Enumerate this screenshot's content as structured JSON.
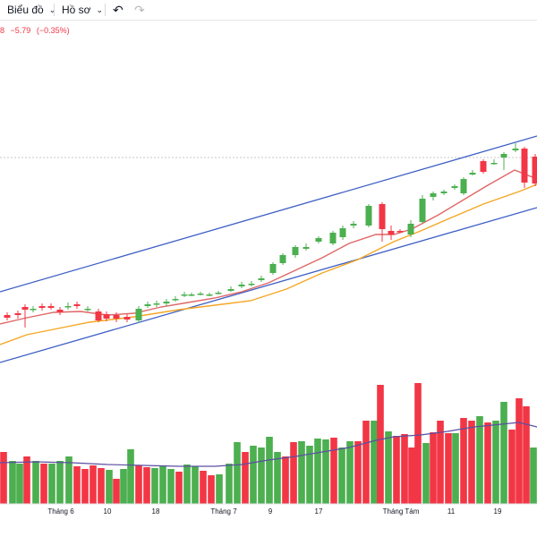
{
  "toolbar": {
    "chart_label": "Biểu đồ",
    "profile_label": "Hồ sơ",
    "undo_icon": "undo-icon",
    "redo_icon": "redo-icon",
    "dropdown_icon": "chevron-down-icon"
  },
  "legend": {
    "value_fragment": "8",
    "change": "−5.79",
    "change_percent": "(−0.35%)"
  },
  "colors": {
    "up": "#4caf50",
    "down": "#f23645",
    "ma_fast": "#e06666",
    "ma_slow": "#f5a623",
    "channel": "#3d5fc4",
    "volume_ma": "#5b4fa3"
  },
  "chart_data": {
    "type": "candlestick",
    "x_ticks": [
      "Tháng 6",
      "10",
      "18",
      "Tháng 7",
      "9",
      "17",
      "Tháng Tám",
      "11",
      "19"
    ],
    "trend_channel": "rising",
    "overlays": [
      "moving average (red)",
      "moving average (orange)",
      "volume moving average"
    ],
    "volume": {
      "type": "bar",
      "colors": [
        "up",
        "down"
      ]
    }
  }
}
